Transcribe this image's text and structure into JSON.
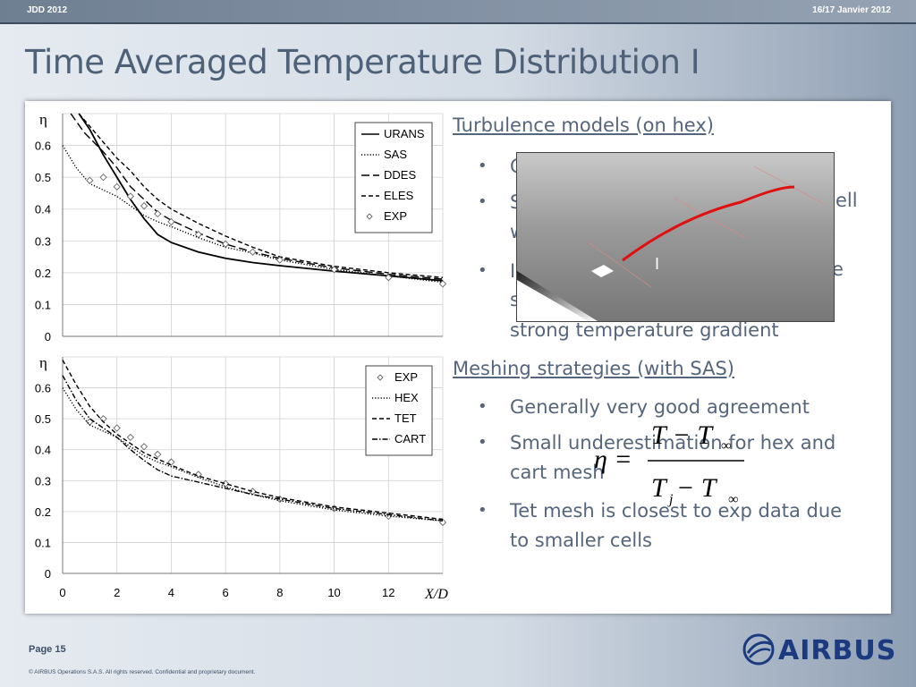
{
  "header": {
    "left": "JDD 2012",
    "right": "16/17 Janvier 2012"
  },
  "title": "Time Averaged Temperature Distribution I",
  "footer": {
    "page": "Page 15",
    "copyright": "© AIRBUS Operations S.A.S. All rights reserved. Confidential and proprietary document.",
    "logo": "AIRBUS"
  },
  "right_text": {
    "section1": "Turbulence models (on hex)",
    "s1_bullets": [
      "C",
      "S",
      "I"
    ],
    "s1_tail": [
      "ell",
      "e"
    ],
    "s1_lines": [
      "w",
      "s",
      "strong temperature gradient"
    ],
    "section2": "Meshing strategies (with SAS)",
    "s2_bullets": [
      "Generally very good agreement",
      "Small underestimation for hex and",
      "cart mesh",
      "Tet mesh is closest to exp data due",
      "to smaller cells"
    ]
  },
  "inset": {
    "label": "I"
  },
  "formula": {
    "lhs": "η =",
    "num": "T − T",
    "num_sub": "∞",
    "den": "T",
    "den_sub1": "j",
    "den_mid": " − T",
    "den_sub2": "∞"
  },
  "chart_data": [
    {
      "type": "line",
      "ylabel": "η",
      "ylim": [
        0,
        0.7
      ],
      "xlim": [
        0,
        14
      ],
      "yticks": [
        "0",
        "0.1",
        "0.2",
        "0.3",
        "0.4",
        "0.5",
        "0.6"
      ],
      "grid": true,
      "legend_position": "top-right",
      "series": [
        {
          "name": "URANS",
          "style": "solid",
          "x": [
            0.6,
            1,
            1.5,
            2,
            2.5,
            3,
            3.5,
            4,
            5,
            6,
            7,
            8,
            10,
            12,
            14
          ],
          "y": [
            0.7,
            0.65,
            0.57,
            0.5,
            0.43,
            0.37,
            0.32,
            0.295,
            0.265,
            0.245,
            0.232,
            0.222,
            0.205,
            0.19,
            0.175
          ]
        },
        {
          "name": "SAS",
          "style": "dotted",
          "x": [
            0,
            0.5,
            1,
            1.5,
            2,
            2.5,
            3,
            3.5,
            4,
            5,
            6,
            7,
            8,
            10,
            12,
            14
          ],
          "y": [
            0.6,
            0.53,
            0.48,
            0.46,
            0.44,
            0.41,
            0.38,
            0.36,
            0.345,
            0.31,
            0.28,
            0.262,
            0.24,
            0.21,
            0.19,
            0.17
          ]
        },
        {
          "name": "DDES",
          "style": "longdash",
          "x": [
            0.3,
            0.8,
            1.5,
            2,
            2.5,
            3,
            3.5,
            4,
            5,
            6,
            7,
            8,
            10,
            12,
            14
          ],
          "y": [
            0.7,
            0.64,
            0.58,
            0.53,
            0.47,
            0.43,
            0.39,
            0.365,
            0.325,
            0.29,
            0.265,
            0.245,
            0.215,
            0.195,
            0.18
          ]
        },
        {
          "name": "ELES",
          "style": "dash",
          "x": [
            0.6,
            1,
            1.5,
            2,
            2.5,
            3,
            3.5,
            4,
            5,
            6,
            7,
            8,
            10,
            12,
            14
          ],
          "y": [
            0.7,
            0.66,
            0.61,
            0.56,
            0.52,
            0.47,
            0.43,
            0.4,
            0.355,
            0.315,
            0.28,
            0.25,
            0.22,
            0.2,
            0.185
          ]
        },
        {
          "name": "EXP",
          "style": "diamond",
          "x": [
            1,
            1.5,
            2,
            2.5,
            3,
            3.5,
            4,
            5,
            6,
            7,
            8,
            10,
            12,
            14
          ],
          "y": [
            0.49,
            0.5,
            0.47,
            0.44,
            0.41,
            0.385,
            0.36,
            0.32,
            0.29,
            0.265,
            0.24,
            0.21,
            0.185,
            0.165
          ]
        }
      ]
    },
    {
      "type": "line",
      "ylabel": "η",
      "xlabel": "X/D",
      "ylim": [
        0,
        0.7
      ],
      "xlim": [
        0,
        14
      ],
      "yticks": [
        "0",
        "0.1",
        "0.2",
        "0.3",
        "0.4",
        "0.5",
        "0.6"
      ],
      "xticks": [
        "0",
        "2",
        "4",
        "6",
        "8",
        "10",
        "12"
      ],
      "grid": true,
      "legend_position": "top-right",
      "series": [
        {
          "name": "EXP",
          "style": "diamond",
          "x": [
            1,
            1.5,
            2,
            2.5,
            3,
            3.5,
            4,
            5,
            6,
            7,
            8,
            10,
            12,
            14
          ],
          "y": [
            0.49,
            0.5,
            0.47,
            0.44,
            0.41,
            0.385,
            0.36,
            0.32,
            0.29,
            0.265,
            0.24,
            0.21,
            0.185,
            0.165
          ]
        },
        {
          "name": "HEX",
          "style": "dotted",
          "x": [
            0,
            0.5,
            1,
            1.5,
            2,
            2.5,
            3,
            3.5,
            4,
            5,
            6,
            7,
            8,
            10,
            12,
            14
          ],
          "y": [
            0.6,
            0.53,
            0.48,
            0.46,
            0.44,
            0.41,
            0.38,
            0.36,
            0.345,
            0.31,
            0.28,
            0.255,
            0.235,
            0.205,
            0.185,
            0.17
          ]
        },
        {
          "name": "TET",
          "style": "dash",
          "x": [
            0,
            0.5,
            1,
            1.5,
            2,
            2.5,
            3,
            3.5,
            4,
            5,
            6,
            7,
            8,
            10,
            12,
            14
          ],
          "y": [
            0.69,
            0.61,
            0.54,
            0.49,
            0.45,
            0.42,
            0.39,
            0.37,
            0.35,
            0.315,
            0.29,
            0.265,
            0.245,
            0.215,
            0.195,
            0.175
          ]
        },
        {
          "name": "CART",
          "style": "dashdot",
          "x": [
            0,
            0.5,
            1,
            1.5,
            2,
            2.5,
            3,
            3.5,
            4,
            5,
            6,
            7,
            8,
            10,
            12,
            14
          ],
          "y": [
            0.64,
            0.56,
            0.5,
            0.47,
            0.44,
            0.4,
            0.365,
            0.335,
            0.315,
            0.295,
            0.275,
            0.255,
            0.24,
            0.21,
            0.19,
            0.17
          ]
        }
      ]
    }
  ]
}
